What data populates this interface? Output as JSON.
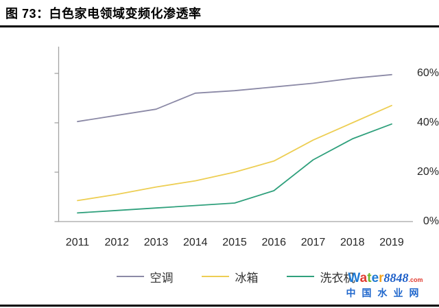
{
  "figure": {
    "title": "图 73：白色家电领域变频化渗透率"
  },
  "chart_data": {
    "type": "line",
    "title": "白色家电领域变频化渗透率",
    "categories": [
      "2011",
      "2012",
      "2013",
      "2014",
      "2015",
      "2016",
      "2017",
      "2018",
      "2019"
    ],
    "series": [
      {
        "name": "空调",
        "color": "#8B89A6",
        "values": [
          40.5,
          43,
          45.5,
          52,
          53,
          54.5,
          56,
          58,
          59.5
        ]
      },
      {
        "name": "冰箱",
        "color": "#EDCE53",
        "values": [
          8.5,
          11,
          14,
          16.5,
          20,
          24.5,
          33,
          40,
          47
        ]
      },
      {
        "name": "洗衣机",
        "color": "#2FA07C",
        "values": [
          3.5,
          4.5,
          5.5,
          6.5,
          7.5,
          12.5,
          25,
          33.5,
          39.5
        ]
      }
    ],
    "xlabel": "",
    "ylabel": "",
    "ylim": [
      0,
      60
    ],
    "ytick_labels": [
      "0%",
      "20%",
      "40%",
      "60%"
    ],
    "ytick_values": [
      0,
      20,
      40,
      60
    ],
    "grid": false,
    "legend_position": "bottom",
    "axis_color": "#A3A3A3"
  },
  "watermark": {
    "brand_letters": [
      {
        "ch": "W",
        "color": "#1E7AD4"
      },
      {
        "ch": "a",
        "color": "#E03A2F"
      },
      {
        "ch": "t",
        "color": "#6FB42C"
      },
      {
        "ch": "e",
        "color": "#1E7AD4"
      },
      {
        "ch": "r",
        "color": "#F5A21C"
      }
    ],
    "brand_number": "8848",
    "brand_tld": ".com",
    "subtitle": "中国水业网",
    "number_color": "#1E5Fc8",
    "tld_color": "#E03A2F",
    "subtitle_color": "#1E66CC"
  }
}
